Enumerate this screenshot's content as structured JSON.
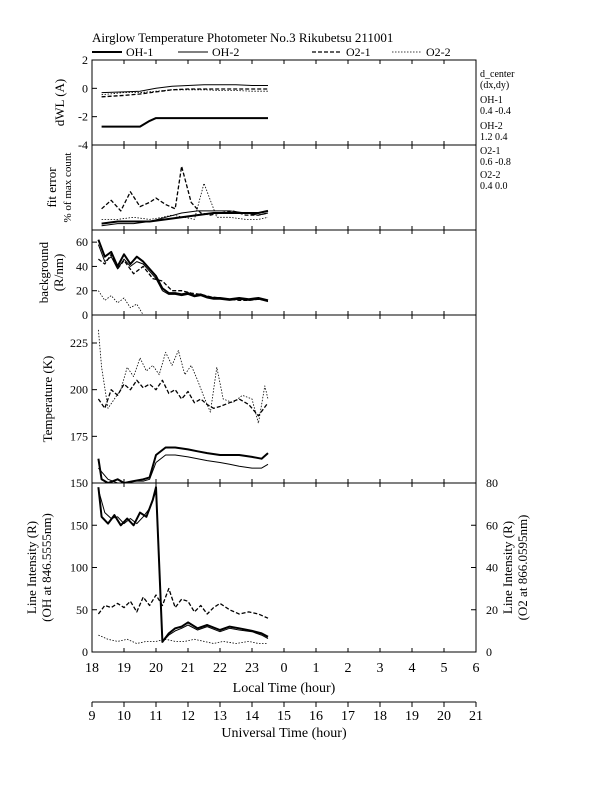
{
  "header": {
    "title": "Airglow Temperature Photometer No.3  Rikubetsu    211001"
  },
  "legend": {
    "entries": [
      {
        "label": "OH-1",
        "dash": "solid",
        "width": 2.0
      },
      {
        "label": "OH-2",
        "dash": "solid",
        "width": 1.0
      },
      {
        "label": "O2-1",
        "dash": "dashed",
        "width": 1.3
      },
      {
        "label": "O2-2",
        "dash": "dotted",
        "width": 0.8
      }
    ]
  },
  "side_info": {
    "heading_1": "d_center",
    "heading_2": "(dx,dy)",
    "rows": [
      {
        "label": "OH-1",
        "value": "0.4   -0.4"
      },
      {
        "label": "OH-2",
        "value": "1.2   0.4"
      },
      {
        "label": "O2-1",
        "value": "0.6   -0.8"
      },
      {
        "label": "O2-2",
        "value": "0.4   0.0"
      }
    ]
  },
  "x_axis": {
    "local_label": "Local Time (hour)",
    "local_ticks": [
      "18",
      "19",
      "20",
      "21",
      "22",
      "23",
      "0",
      "1",
      "2",
      "3",
      "4",
      "5",
      "6"
    ],
    "ut_label": "Universal Time (hour)",
    "ut_ticks": [
      "9",
      "10",
      "11",
      "12",
      "13",
      "14",
      "15",
      "16",
      "17",
      "18",
      "19",
      "20",
      "21"
    ],
    "range_lt": [
      18,
      30
    ]
  },
  "chart_data": [
    {
      "type": "line",
      "panel": "dwl",
      "ylabel": "dWL (A)",
      "ylim": [
        -4,
        2
      ],
      "ticks": [
        -4,
        -2,
        0,
        2
      ],
      "series": [
        {
          "name": "OH-1",
          "x": [
            18.3,
            19.0,
            19.5,
            19.8,
            20.0,
            20.3,
            20.6,
            21.0,
            21.5,
            22.0,
            22.5,
            23.0,
            23.5
          ],
          "y": [
            -2.7,
            -2.7,
            -2.7,
            -2.3,
            -2.1,
            -2.1,
            -2.1,
            -2.1,
            -2.1,
            -2.1,
            -2.1,
            -2.1,
            -2.1
          ]
        },
        {
          "name": "OH-2",
          "x": [
            18.3,
            19.0,
            19.5,
            20.0,
            20.5,
            21.0,
            21.5,
            22.0,
            22.5,
            23.0,
            23.5
          ],
          "y": [
            -0.3,
            -0.25,
            -0.2,
            0.0,
            0.15,
            0.2,
            0.25,
            0.25,
            0.25,
            0.2,
            0.2
          ]
        },
        {
          "name": "O2-1",
          "x": [
            18.3,
            19.0,
            19.5,
            20.0,
            20.5,
            21.0,
            21.5,
            22.0,
            22.5,
            23.0,
            23.5
          ],
          "y": [
            -0.6,
            -0.5,
            -0.4,
            -0.25,
            -0.1,
            -0.05,
            -0.05,
            -0.05,
            -0.05,
            -0.05,
            -0.05
          ]
        },
        {
          "name": "O2-2",
          "x": [
            18.3,
            19.0,
            19.5,
            20.0,
            20.5,
            21.0,
            21.5,
            22.0,
            22.5,
            23.0,
            23.5
          ],
          "y": [
            -0.45,
            -0.3,
            -0.3,
            -0.2,
            -0.1,
            -0.1,
            -0.1,
            -0.15,
            -0.15,
            -0.2,
            -0.2
          ]
        }
      ]
    },
    {
      "type": "line",
      "panel": "fit",
      "ylabel": "fit error",
      "ylabel2": "% of max count",
      "ylim": [
        0,
        4
      ],
      "ticks": [],
      "series": [
        {
          "name": "OH-1",
          "x": [
            18.3,
            18.8,
            19.3,
            19.8,
            20.3,
            20.8,
            21.3,
            21.8,
            22.3,
            22.8,
            23.2,
            23.5
          ],
          "y": [
            0.3,
            0.4,
            0.4,
            0.4,
            0.5,
            0.6,
            0.7,
            0.8,
            0.8,
            0.8,
            0.8,
            0.9
          ]
        },
        {
          "name": "OH-2",
          "x": [
            18.3,
            18.8,
            19.3,
            19.8,
            20.3,
            20.8,
            21.3,
            21.8,
            22.3,
            22.8,
            23.2,
            23.5
          ],
          "y": [
            0.2,
            0.3,
            0.3,
            0.4,
            0.6,
            0.8,
            0.9,
            0.9,
            0.9,
            0.8,
            0.7,
            0.8
          ]
        },
        {
          "name": "O2-1",
          "x": [
            18.3,
            18.6,
            18.9,
            19.2,
            19.5,
            19.8,
            20.0,
            20.3,
            20.6,
            20.8,
            21.1,
            21.4,
            21.7,
            22.0,
            22.4,
            22.8,
            23.2,
            23.5
          ],
          "y": [
            1.0,
            1.4,
            0.9,
            1.8,
            1.1,
            1.3,
            1.5,
            1.2,
            1.0,
            3.0,
            1.3,
            0.8,
            0.7,
            0.8,
            0.9,
            0.7,
            0.7,
            0.8
          ]
        },
        {
          "name": "O2-2",
          "x": [
            18.3,
            18.8,
            19.3,
            19.8,
            20.2,
            20.5,
            20.9,
            21.2,
            21.5,
            21.9,
            22.3,
            22.8,
            23.2,
            23.5
          ],
          "y": [
            0.5,
            0.5,
            0.6,
            0.5,
            0.6,
            0.7,
            0.6,
            0.5,
            2.2,
            0.6,
            0.6,
            0.5,
            0.5,
            0.6
          ]
        }
      ]
    },
    {
      "type": "line",
      "panel": "background",
      "ylabel": "background",
      "ylabel2": "(R/nm)",
      "ylim": [
        0,
        70
      ],
      "ticks": [
        0,
        20,
        40,
        60
      ],
      "series": [
        {
          "name": "OH-1",
          "x": [
            18.2,
            18.4,
            18.6,
            18.8,
            19.0,
            19.2,
            19.4,
            19.6,
            19.8,
            20.0,
            20.2,
            20.4,
            20.6,
            20.8,
            21.0,
            21.2,
            21.4,
            21.6,
            21.8,
            22.0,
            22.3,
            22.6,
            22.9,
            23.2,
            23.5
          ],
          "y": [
            62,
            48,
            52,
            40,
            50,
            42,
            48,
            44,
            38,
            32,
            22,
            18,
            18,
            17,
            18,
            16,
            17,
            15,
            14,
            14,
            13,
            14,
            13,
            14,
            12
          ]
        },
        {
          "name": "OH-2",
          "x": [
            18.2,
            18.4,
            18.6,
            18.8,
            19.0,
            19.2,
            19.4,
            19.6,
            19.8,
            20.0,
            20.2,
            20.4,
            20.6,
            20.8,
            21.0,
            21.2,
            21.4,
            21.6,
            21.8,
            22.0,
            22.3,
            22.6,
            22.9,
            23.2,
            23.5
          ],
          "y": [
            58,
            44,
            48,
            38,
            46,
            40,
            44,
            42,
            36,
            30,
            20,
            17,
            17,
            16,
            17,
            15,
            16,
            14,
            13,
            13,
            12,
            13,
            12,
            13,
            11
          ]
        },
        {
          "name": "O2-1",
          "x": [
            18.2,
            18.4,
            18.6,
            18.8,
            19.0,
            19.3,
            19.6,
            19.9,
            20.2,
            20.5,
            20.8,
            21.1,
            21.4,
            21.7,
            22.0,
            22.3,
            22.6,
            22.9,
            23.2,
            23.5
          ],
          "y": [
            46,
            42,
            50,
            38,
            45,
            34,
            40,
            30,
            28,
            20,
            20,
            18,
            17,
            15,
            14,
            13,
            12,
            12,
            13,
            12
          ]
        },
        {
          "name": "O2-2",
          "x": [
            18.2,
            18.4,
            18.6,
            18.8,
            19.0,
            19.2,
            19.4,
            19.6
          ],
          "y": [
            20,
            12,
            16,
            10,
            14,
            6,
            9,
            0
          ]
        }
      ]
    },
    {
      "type": "line",
      "panel": "temperature",
      "ylabel": "Temperature (K)",
      "ylim": [
        150,
        240
      ],
      "ticks": [
        150,
        175,
        200,
        225
      ],
      "series": [
        {
          "name": "OH-1",
          "x": [
            18.2,
            18.3,
            18.5,
            18.8,
            19.0,
            19.3,
            19.6,
            19.8,
            20.0,
            20.3,
            20.6,
            21.0,
            21.3,
            21.6,
            22.0,
            22.3,
            22.6,
            23.0,
            23.3,
            23.5
          ],
          "y": [
            163,
            152,
            150,
            152,
            150,
            151,
            152,
            153,
            165,
            169,
            169,
            168,
            167,
            166,
            165,
            165,
            165,
            164,
            163,
            166
          ]
        },
        {
          "name": "OH-2",
          "x": [
            18.2,
            18.5,
            18.8,
            19.0,
            19.3,
            19.6,
            19.8,
            20.0,
            20.3,
            20.6,
            21.0,
            21.3,
            21.6,
            22.0,
            22.3,
            22.6,
            23.0,
            23.3,
            23.5
          ],
          "y": [
            158,
            152,
            150,
            150,
            151,
            151,
            152,
            161,
            165,
            165,
            164,
            163,
            162,
            161,
            160,
            159,
            158,
            158,
            160
          ]
        },
        {
          "name": "O2-1",
          "x": [
            18.2,
            18.4,
            18.6,
            18.8,
            19.0,
            19.2,
            19.4,
            19.6,
            19.8,
            20.0,
            20.2,
            20.4,
            20.6,
            20.8,
            21.0,
            21.2,
            21.4,
            21.6,
            21.8,
            22.0,
            22.3,
            22.6,
            22.9,
            23.2,
            23.5
          ],
          "y": [
            195,
            190,
            200,
            197,
            203,
            200,
            205,
            201,
            203,
            200,
            205,
            198,
            200,
            195,
            199,
            193,
            195,
            192,
            190,
            191,
            193,
            195,
            192,
            186,
            193
          ]
        },
        {
          "name": "O2-2",
          "x": [
            18.2,
            18.3,
            18.5,
            18.7,
            18.9,
            19.1,
            19.3,
            19.5,
            19.7,
            19.9,
            20.1,
            20.3,
            20.5,
            20.7,
            20.9,
            21.1,
            21.3,
            21.5,
            21.7,
            21.9,
            22.1,
            22.4,
            22.7,
            23.0,
            23.2,
            23.4,
            23.5
          ],
          "y": [
            232,
            212,
            190,
            195,
            200,
            212,
            207,
            217,
            210,
            213,
            208,
            220,
            213,
            221,
            208,
            213,
            205,
            196,
            188,
            212,
            195,
            193,
            197,
            195,
            182,
            202,
            195
          ]
        }
      ]
    },
    {
      "type": "line",
      "panel": "intensity",
      "ylabel": "Line Intensity (R)",
      "ylabel2": "(OH at 846.5555nm)",
      "ylabel_right": "Line Intensity (R)",
      "ylabel_right2": "(O2 at 866.0595nm)",
      "ylim": [
        0,
        200
      ],
      "ticks": [
        0,
        50,
        100,
        150
      ],
      "ylim_right": [
        0,
        80
      ],
      "ticks_right": [
        0,
        20,
        40,
        60,
        80
      ],
      "series": [
        {
          "name": "OH-1",
          "axis": "left",
          "x": [
            18.2,
            18.3,
            18.5,
            18.7,
            18.9,
            19.1,
            19.3,
            19.5,
            19.7,
            19.9,
            20.0,
            20.2,
            20.4,
            20.6,
            20.8,
            21.0,
            21.3,
            21.6,
            22.0,
            22.3,
            22.6,
            23.0,
            23.3,
            23.5
          ],
          "y": [
            195,
            160,
            152,
            162,
            150,
            158,
            150,
            165,
            160,
            180,
            195,
            12,
            22,
            28,
            30,
            35,
            28,
            32,
            26,
            30,
            28,
            25,
            22,
            18
          ]
        },
        {
          "name": "OH-2",
          "axis": "left",
          "x": [
            18.2,
            18.4,
            18.6,
            18.8,
            19.0,
            19.2,
            19.4,
            19.6,
            19.8,
            20.0,
            20.2,
            20.4,
            20.6,
            20.8,
            21.0,
            21.3,
            21.6,
            22.0,
            22.3,
            22.6,
            23.0,
            23.3,
            23.5
          ],
          "y": [
            192,
            165,
            158,
            160,
            152,
            158,
            152,
            160,
            170,
            190,
            12,
            20,
            25,
            28,
            32,
            26,
            30,
            24,
            28,
            26,
            24,
            20,
            16
          ]
        },
        {
          "name": "O2-1",
          "axis": "right",
          "x": [
            18.2,
            18.4,
            18.6,
            18.8,
            19.0,
            19.2,
            19.4,
            19.6,
            19.8,
            20.0,
            20.2,
            20.4,
            20.6,
            20.8,
            21.0,
            21.2,
            21.4,
            21.6,
            21.8,
            22.0,
            22.3,
            22.6,
            22.9,
            23.2,
            23.5
          ],
          "y": [
            18,
            22,
            21,
            23,
            21,
            24,
            19,
            26,
            22,
            27,
            22,
            30,
            21,
            25,
            24,
            19,
            22,
            18,
            21,
            23,
            20,
            18,
            19,
            18,
            16
          ]
        },
        {
          "name": "O2-2",
          "axis": "right",
          "x": [
            18.2,
            18.5,
            18.8,
            19.1,
            19.4,
            19.7,
            20.0,
            20.3,
            20.6,
            20.9,
            21.2,
            21.5,
            21.8,
            22.1,
            22.5,
            22.9,
            23.2,
            23.5
          ],
          "y": [
            8,
            6,
            5,
            6,
            4,
            5,
            5,
            6,
            5,
            5,
            6,
            5,
            4,
            5,
            4,
            5,
            4,
            4
          ]
        }
      ]
    }
  ]
}
